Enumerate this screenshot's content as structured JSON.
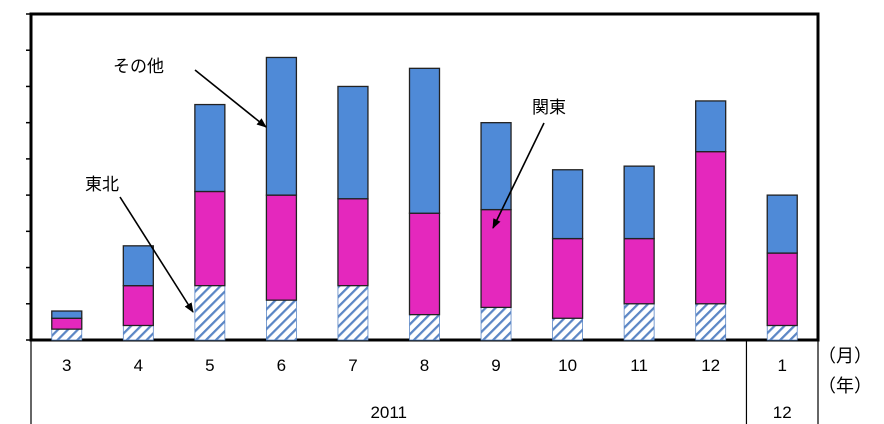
{
  "colors": {
    "tohoku_hatch": "#5b86c5",
    "kanto": "#e428bd",
    "other": "#4f8ad7",
    "bar_edge": "#222222",
    "frame": "#000000"
  },
  "labels": {
    "month_unit": "（月）",
    "year_unit": "（年）"
  },
  "annotations": {
    "other": "その他",
    "kanto": "関東",
    "tohoku": "東北"
  },
  "chart_data": {
    "type": "bar",
    "stacked": true,
    "categories": [
      "3",
      "4",
      "5",
      "6",
      "7",
      "8",
      "9",
      "10",
      "11",
      "12",
      "1"
    ],
    "years": [
      {
        "label": "2011",
        "months": [
          "3",
          "4",
          "5",
          "6",
          "7",
          "8",
          "9",
          "10",
          "11",
          "12"
        ]
      },
      {
        "label": "12",
        "months": [
          "1"
        ]
      }
    ],
    "series": [
      {
        "name": "東北",
        "values": [
          0.3,
          0.4,
          1.5,
          1.1,
          1.5,
          0.7,
          0.9,
          0.6,
          1.0,
          1.0,
          0.4
        ]
      },
      {
        "name": "関東",
        "values": [
          0.3,
          1.1,
          2.6,
          2.9,
          2.4,
          2.8,
          2.7,
          2.2,
          1.8,
          4.2,
          2.0
        ]
      },
      {
        "name": "その他",
        "values": [
          0.2,
          1.1,
          2.4,
          3.8,
          3.1,
          4.0,
          2.4,
          1.9,
          2.0,
          1.4,
          1.6
        ]
      }
    ],
    "ylim": [
      0,
      9
    ],
    "y_ticks": [
      0,
      1,
      2,
      3,
      4,
      5,
      6,
      7,
      8,
      9
    ],
    "y_tick_labels_visible": false,
    "xlabel": "",
    "ylabel": "",
    "title": ""
  }
}
